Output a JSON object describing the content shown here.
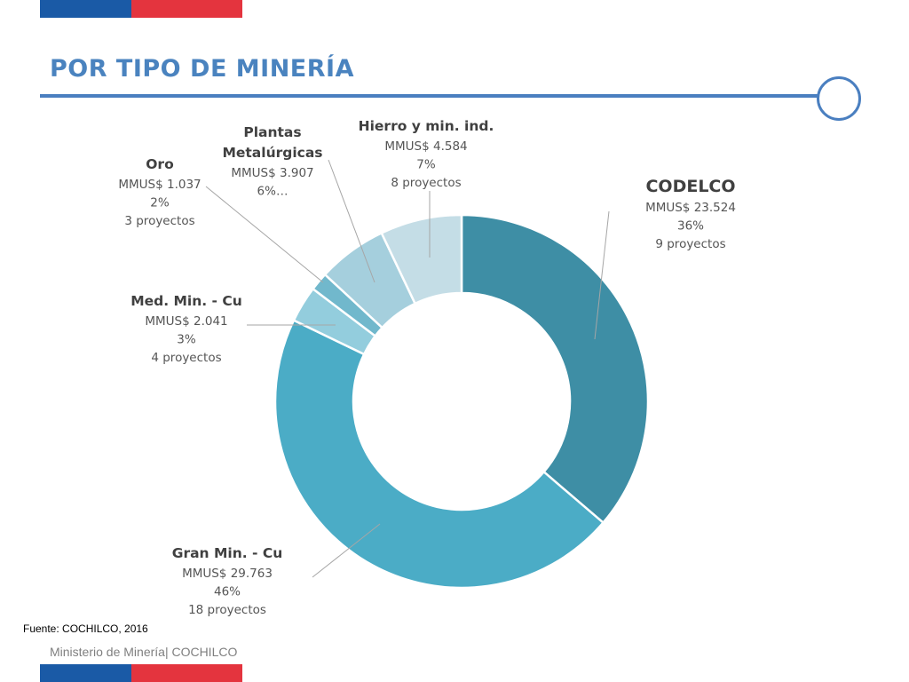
{
  "header": {
    "title": "POR TIPO DE MINERÍA"
  },
  "footer": {
    "source": "Fuente: COCHILCO, 2016",
    "org": "Ministerio de Minería| COCHILCO"
  },
  "colors": {
    "brand_blue": "#1a5aa6",
    "brand_red": "#e4343e",
    "title_blue": "#4a83bf"
  },
  "chart_data": {
    "type": "pie",
    "style": "donut",
    "unit": "MMUS$",
    "slices": [
      {
        "name": "CODELCO",
        "name_lines": [
          "CODELCO"
        ],
        "value": 23524,
        "value_text": "MMUS$ 23.524",
        "percent": 36,
        "percent_text": "36%",
        "projects_text": "9 proyectos",
        "color": "#3e8ea5"
      },
      {
        "name": "Gran Min. - Cu",
        "name_lines": [
          "Gran Min. - Cu"
        ],
        "value": 29763,
        "value_text": "MMUS$ 29.763",
        "percent": 46,
        "percent_text": "46%",
        "projects_text": "18 proyectos",
        "color": "#4bacc6"
      },
      {
        "name": "Med. Min. - Cu",
        "name_lines": [
          "Med. Min. - Cu"
        ],
        "value": 2041,
        "value_text": "MMUS$ 2.041",
        "percent": 3,
        "percent_text": "3%",
        "projects_text": "4 proyectos",
        "color": "#93cddd"
      },
      {
        "name": "Oro",
        "name_lines": [
          "Oro"
        ],
        "value": 1037,
        "value_text": "MMUS$ 1.037",
        "percent": 2,
        "percent_text": "2%",
        "projects_text": "3 proyectos",
        "color": "#71b8cc"
      },
      {
        "name": "Plantas Metalúrgicas",
        "name_lines": [
          "Plantas",
          "Metalúrgicas"
        ],
        "value": 3907,
        "value_text": "MMUS$ 3.907",
        "percent": 6,
        "percent_text": "6%…",
        "projects_text": "",
        "color": "#a5cfdd"
      },
      {
        "name": "Hierro y min. ind.",
        "name_lines": [
          "Hierro y min. ind."
        ],
        "value": 4584,
        "value_text": "MMUS$ 4.584",
        "percent": 7,
        "percent_text": "7%",
        "projects_text": "8 proyectos",
        "color": "#c4dde6"
      }
    ]
  }
}
